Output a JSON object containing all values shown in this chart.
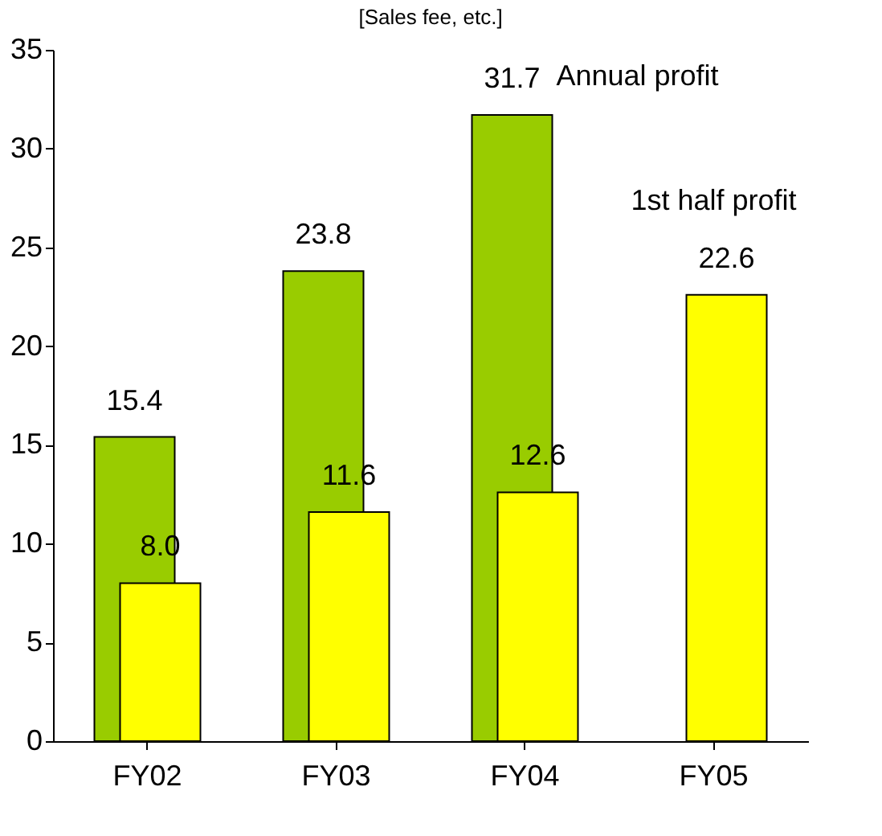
{
  "chart_data": {
    "type": "bar",
    "title": "[Sales fee, etc.]",
    "categories": [
      "FY02",
      "FY03",
      "FY04",
      "FY05"
    ],
    "series": [
      {
        "name": "Annual profit",
        "color": "#99cc00",
        "values": [
          15.4,
          23.8,
          31.7,
          null
        ],
        "value_labels": [
          "15.4",
          "23.8",
          "31.7",
          null
        ]
      },
      {
        "name": "1st half profit",
        "color": "#ffff00",
        "values": [
          8.0,
          11.6,
          12.6,
          22.6
        ],
        "value_labels": [
          "8.0",
          "11.6",
          "12.6",
          "22.6"
        ]
      }
    ],
    "ylim": [
      0,
      35
    ],
    "yticks": [
      0,
      5,
      10,
      15,
      20,
      25,
      30,
      35
    ],
    "grid": false
  }
}
